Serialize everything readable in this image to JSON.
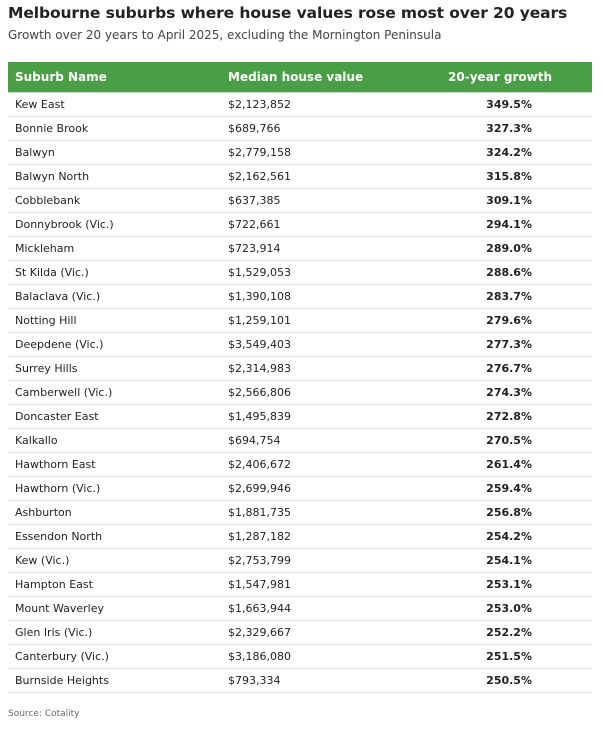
{
  "header": {
    "title": "Melbourne suburbs where house values rose most over 20 years",
    "subtitle": "Growth over 20 years to April 2025, excluding the Mornington Peninsula"
  },
  "chart_data": {
    "type": "table",
    "columns": [
      "Suburb Name",
      "Median house value",
      "20-year growth"
    ],
    "rows": [
      [
        "Kew East",
        "$2,123,852",
        "349.5%"
      ],
      [
        "Bonnie Brook",
        "$689,766",
        "327.3%"
      ],
      [
        "Balwyn",
        "$2,779,158",
        "324.2%"
      ],
      [
        "Balwyn North",
        "$2,162,561",
        "315.8%"
      ],
      [
        "Cobblebank",
        "$637,385",
        "309.1%"
      ],
      [
        "Donnybrook (Vic.)",
        "$722,661",
        "294.1%"
      ],
      [
        "Mickleham",
        "$723,914",
        "289.0%"
      ],
      [
        "St Kilda (Vic.)",
        "$1,529,053",
        "288.6%"
      ],
      [
        "Balaclava (Vic.)",
        "$1,390,108",
        "283.7%"
      ],
      [
        "Notting Hill",
        "$1,259,101",
        "279.6%"
      ],
      [
        "Deepdene (Vic.)",
        "$3,549,403",
        "277.3%"
      ],
      [
        "Surrey Hills",
        "$2,314,983",
        "276.7%"
      ],
      [
        "Camberwell (Vic.)",
        "$2,566,806",
        "274.3%"
      ],
      [
        "Doncaster East",
        "$1,495,839",
        "272.8%"
      ],
      [
        "Kalkallo",
        "$694,754",
        "270.5%"
      ],
      [
        "Hawthorn East",
        "$2,406,672",
        "261.4%"
      ],
      [
        "Hawthorn (Vic.)",
        "$2,699,946",
        "259.4%"
      ],
      [
        "Ashburton",
        "$1,881,735",
        "256.8%"
      ],
      [
        "Essendon North",
        "$1,287,182",
        "254.2%"
      ],
      [
        "Kew (Vic.)",
        "$2,753,799",
        "254.1%"
      ],
      [
        "Hampton East",
        "$1,547,981",
        "253.1%"
      ],
      [
        "Mount Waverley",
        "$1,663,944",
        "253.0%"
      ],
      [
        "Glen Iris (Vic.)",
        "$2,329,667",
        "252.2%"
      ],
      [
        "Canterbury (Vic.)",
        "$3,186,080",
        "251.5%"
      ],
      [
        "Burnside Heights",
        "$793,334",
        "250.5%"
      ]
    ]
  },
  "footer": {
    "source": "Source: Cotality"
  },
  "colors": {
    "header_bg": "#4a9e45",
    "header_text": "#ffffff",
    "row_divider": "#e0e0e0"
  }
}
